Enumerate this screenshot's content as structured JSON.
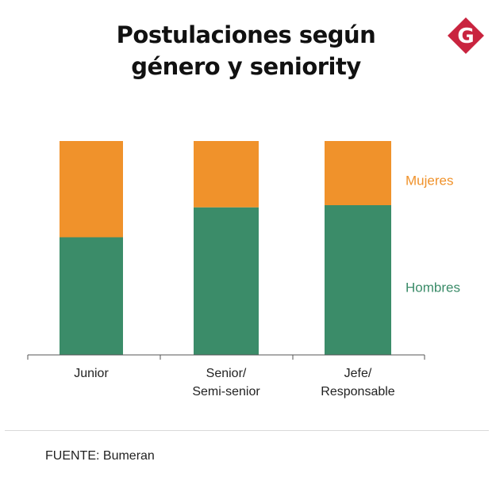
{
  "title_line1": "Postulaciones según",
  "title_line2": "género y seniority",
  "logo_letter": "G",
  "source": "FUENTE: Bumeran",
  "colors": {
    "mujeres": "#f0922b",
    "hombres": "#3b8c69",
    "logo": "#c9243f"
  },
  "chart_data": {
    "type": "bar",
    "stacked": true,
    "normalized": true,
    "categories": [
      [
        "Junior"
      ],
      [
        "Senior/",
        "Semi-senior"
      ],
      [
        "Jefe/",
        "Responsable"
      ]
    ],
    "series": [
      {
        "name": "Hombres",
        "values": [
          55,
          69,
          70
        ]
      },
      {
        "name": "Mujeres",
        "values": [
          45,
          31,
          30
        ]
      }
    ],
    "ylim": [
      0,
      100
    ],
    "legend": "right"
  }
}
